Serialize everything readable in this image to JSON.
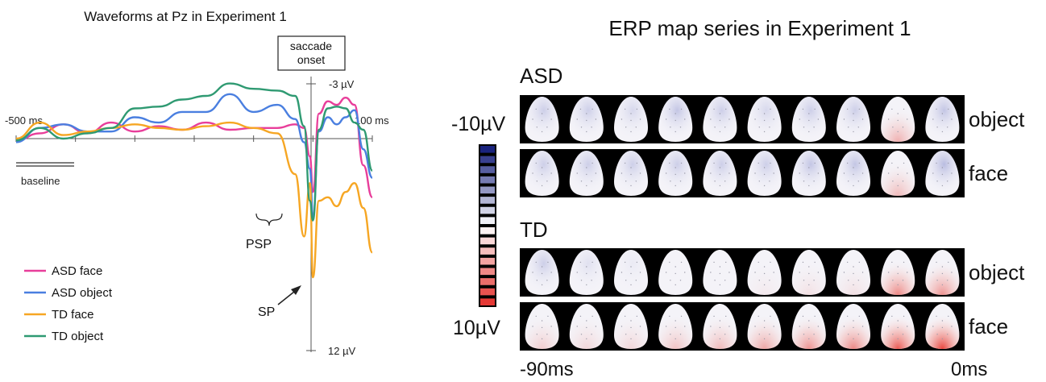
{
  "chart_data": [
    {
      "type": "line",
      "title": "Waveforms at Pz in Experiment 1",
      "x_unit": "ms",
      "xlim": [
        -500,
        100
      ],
      "x_tick_labels": {
        "start": "-500 ms",
        "end": "100 ms"
      },
      "ylim": [
        -3,
        12
      ],
      "y_tick_labels": {
        "top": "-3 µV",
        "bottom": "12 µV"
      },
      "y_inverted": true,
      "annotations": {
        "saccade_onset": "saccade\nonset",
        "baseline": "baseline",
        "psp": "PSP",
        "sp": "SP"
      },
      "legend_position": "bottom-left",
      "series": [
        {
          "name": "ASD face",
          "color": "#e83e9a",
          "x": [
            -500,
            -460,
            -420,
            -380,
            -340,
            -300,
            -260,
            -220,
            -180,
            -140,
            -100,
            -60,
            -30,
            -15,
            -5,
            0,
            10,
            25,
            40,
            55,
            70,
            85,
            100
          ],
          "y": [
            0.1,
            -0.3,
            -0.8,
            -0.3,
            -0.9,
            -0.4,
            -0.7,
            -0.5,
            -0.9,
            -0.5,
            -0.6,
            -0.6,
            -0.8,
            -0.6,
            1.0,
            3.0,
            -1.4,
            -2.1,
            -1.9,
            -2.3,
            -1.9,
            1.5,
            3.3
          ]
        },
        {
          "name": "ASD object",
          "color": "#4a7fe0",
          "x": [
            -500,
            -460,
            -420,
            -380,
            -340,
            -300,
            -260,
            -220,
            -180,
            -140,
            -100,
            -60,
            -30,
            -15,
            -5,
            0,
            10,
            25,
            40,
            55,
            70,
            85,
            100
          ],
          "y": [
            0.2,
            -0.6,
            -0.8,
            -0.4,
            -0.4,
            -1.2,
            -0.9,
            -1.5,
            -1.5,
            -2.5,
            -1.5,
            -1.9,
            -1.1,
            0.2,
            1.7,
            4.4,
            -0.4,
            -1.2,
            -0.8,
            -1.2,
            -1.6,
            0.6,
            2.2
          ]
        },
        {
          "name": "TD face",
          "color": "#f6a623",
          "x": [
            -500,
            -460,
            -420,
            -380,
            -340,
            -300,
            -260,
            -220,
            -180,
            -140,
            -100,
            -60,
            -30,
            -15,
            -5,
            0,
            10,
            25,
            40,
            55,
            70,
            85,
            100
          ],
          "y": [
            0.0,
            -0.9,
            -0.2,
            -0.4,
            -0.6,
            -0.8,
            -0.6,
            -0.5,
            -0.7,
            -0.9,
            -0.6,
            -0.3,
            2.0,
            5.5,
            2.5,
            7.8,
            3.5,
            3.3,
            3.8,
            3.0,
            2.5,
            3.9,
            6.4
          ]
        },
        {
          "name": "TD object",
          "color": "#2f9a72",
          "x": [
            -500,
            -460,
            -420,
            -380,
            -340,
            -300,
            -260,
            -220,
            -180,
            -140,
            -100,
            -60,
            -30,
            -15,
            -5,
            0,
            10,
            25,
            40,
            55,
            70,
            85,
            100
          ],
          "y": [
            0.1,
            -0.6,
            0.0,
            -0.3,
            -0.6,
            -1.7,
            -1.8,
            -2.2,
            -2.4,
            -3.1,
            -2.8,
            -2.7,
            -2.4,
            -0.7,
            3.5,
            4.6,
            -0.5,
            -1.7,
            -1.8,
            -1.7,
            -0.9,
            -0.5,
            1.8
          ]
        }
      ]
    },
    {
      "type": "heatmap",
      "title": "ERP map series in Experiment 1",
      "x_start_label": "-90ms",
      "x_end_label": "0ms",
      "colorbar": {
        "min_label": "-10µV",
        "max_label": "10µV",
        "min_color": "#1a237e",
        "max_color": "#e53935"
      },
      "groups": [
        {
          "name": "ASD",
          "rows": [
            {
              "condition": "object",
              "values": [
                -0.2,
                -0.2,
                -0.15,
                -0.25,
                -0.2,
                -0.15,
                -0.2,
                -0.2,
                0.35,
                -0.25
              ]
            },
            {
              "condition": "face",
              "values": [
                -0.2,
                -0.2,
                -0.2,
                -0.2,
                -0.2,
                -0.2,
                -0.25,
                -0.25,
                0.3,
                -0.3
              ]
            }
          ]
        },
        {
          "name": "TD",
          "rows": [
            {
              "condition": "object",
              "values": [
                -0.2,
                -0.1,
                -0.05,
                0.0,
                0.0,
                0.05,
                0.1,
                0.1,
                0.55,
                0.5
              ]
            },
            {
              "condition": "face",
              "values": [
                0.2,
                0.15,
                0.15,
                0.25,
                0.3,
                0.4,
                0.5,
                0.55,
                0.8,
                0.9
              ]
            }
          ]
        }
      ]
    }
  ]
}
